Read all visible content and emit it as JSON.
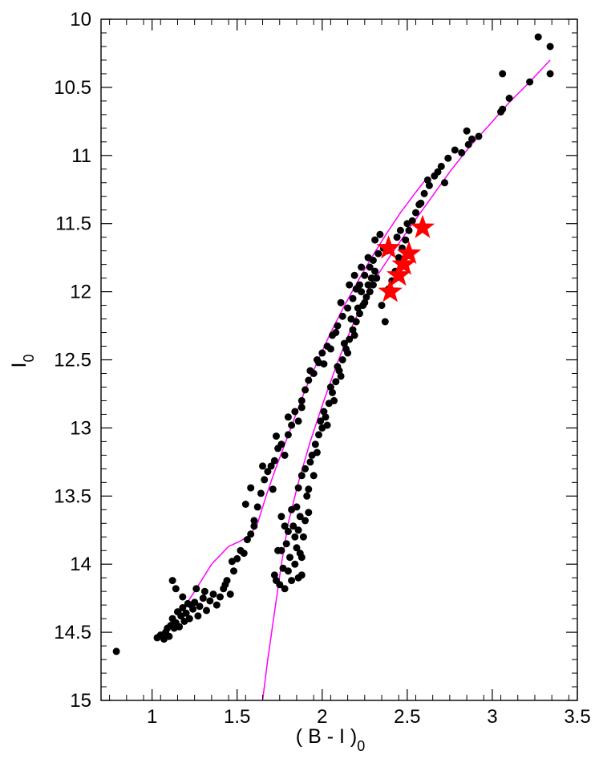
{
  "chart_data": {
    "type": "scatter",
    "title": "",
    "xlabel": "( B - I )",
    "xlabel_sub": "0",
    "ylabel": "I",
    "ylabel_sub": "0",
    "xlim": [
      0.7,
      3.5
    ],
    "ylim": [
      15,
      10
    ],
    "y_inverted": true,
    "grid": false,
    "x_ticks": [
      "1",
      "1.5",
      "2",
      "2.5",
      "3",
      "3.5"
    ],
    "y_ticks": [
      "10",
      "10.5",
      "11",
      "11.5",
      "12",
      "12.5",
      "13",
      "13.5",
      "14",
      "14.5",
      "15"
    ],
    "colors": {
      "points": "#000000",
      "stars": "#ff0000",
      "isochrones": "#ff00ff"
    },
    "series": [
      {
        "kind": "points",
        "marker": "filled-circle",
        "points": [
          [
            0.79,
            14.64
          ],
          [
            1.03,
            14.54
          ],
          [
            1.05,
            14.52
          ],
          [
            1.07,
            14.55
          ],
          [
            1.08,
            14.5
          ],
          [
            1.09,
            14.47
          ],
          [
            1.1,
            14.53
          ],
          [
            1.11,
            14.45
          ],
          [
            1.12,
            14.4
          ],
          [
            1.13,
            14.47
          ],
          [
            1.14,
            14.43
          ],
          [
            1.15,
            14.35
          ],
          [
            1.16,
            14.46
          ],
          [
            1.17,
            14.38
          ],
          [
            1.18,
            14.32
          ],
          [
            1.19,
            14.42
          ],
          [
            1.2,
            14.36
          ],
          [
            1.21,
            14.29
          ],
          [
            1.22,
            14.4
          ],
          [
            1.24,
            14.33
          ],
          [
            1.25,
            14.28
          ],
          [
            1.27,
            14.38
          ],
          [
            1.28,
            14.31
          ],
          [
            1.3,
            14.25
          ],
          [
            1.32,
            14.34
          ],
          [
            1.34,
            14.27
          ],
          [
            1.36,
            14.22
          ],
          [
            1.38,
            14.3
          ],
          [
            1.4,
            14.24
          ],
          [
            1.42,
            14.18
          ],
          [
            1.44,
            14.12
          ],
          [
            1.46,
            14.22
          ],
          [
            1.48,
            14.05
          ],
          [
            1.5,
            13.96
          ],
          [
            1.52,
            13.9
          ],
          [
            1.54,
            13.92
          ],
          [
            1.56,
            13.82
          ],
          [
            1.58,
            13.78
          ],
          [
            1.6,
            13.72
          ],
          [
            1.62,
            13.58
          ],
          [
            1.64,
            13.48
          ],
          [
            1.66,
            13.38
          ],
          [
            1.68,
            13.32
          ],
          [
            1.7,
            13.28
          ],
          [
            1.72,
            13.24
          ],
          [
            1.74,
            13.15
          ],
          [
            1.76,
            13.12
          ],
          [
            1.78,
            13.2
          ],
          [
            1.8,
            13.05
          ],
          [
            1.82,
            12.98
          ],
          [
            1.84,
            12.88
          ],
          [
            1.86,
            12.95
          ],
          [
            1.88,
            12.8
          ],
          [
            1.9,
            12.72
          ],
          [
            1.92,
            12.65
          ],
          [
            1.95,
            12.6
          ],
          [
            1.98,
            12.52
          ],
          [
            2.0,
            12.45
          ],
          [
            2.03,
            12.4
          ],
          [
            2.06,
            12.32
          ],
          [
            2.09,
            12.25
          ],
          [
            2.12,
            12.18
          ],
          [
            2.15,
            12.12
          ],
          [
            2.18,
            12.05
          ],
          [
            2.2,
            11.98
          ],
          [
            2.22,
            11.95
          ],
          [
            2.25,
            11.88
          ],
          [
            2.28,
            11.82
          ],
          [
            2.3,
            11.77
          ],
          [
            2.33,
            11.72
          ],
          [
            2.36,
            11.68
          ],
          [
            1.12,
            14.12
          ],
          [
            1.14,
            14.18
          ],
          [
            1.26,
            14.18
          ],
          [
            1.31,
            14.2
          ],
          [
            1.18,
            14.24
          ],
          [
            1.23,
            14.3
          ],
          [
            1.43,
            14.15
          ],
          [
            1.47,
            13.98
          ],
          [
            1.55,
            13.56
          ],
          [
            1.58,
            13.44
          ],
          [
            1.6,
            13.68
          ],
          [
            1.65,
            13.28
          ],
          [
            1.71,
            13.45
          ],
          [
            1.73,
            13.06
          ],
          [
            1.8,
            12.92
          ],
          [
            1.88,
            12.85
          ],
          [
            1.93,
            12.58
          ],
          [
            1.97,
            12.5
          ],
          [
            2.01,
            12.53
          ],
          [
            2.05,
            12.42
          ],
          [
            2.08,
            12.3
          ],
          [
            2.11,
            12.08
          ],
          [
            2.16,
            11.95
          ],
          [
            2.19,
            11.88
          ],
          [
            2.23,
            11.82
          ],
          [
            2.27,
            11.75
          ],
          [
            2.31,
            11.62
          ],
          [
            2.34,
            11.58
          ],
          [
            2.38,
            11.7
          ],
          [
            1.72,
            14.08
          ],
          [
            1.73,
            14.12
          ],
          [
            1.75,
            14.15
          ],
          [
            1.76,
            13.9
          ],
          [
            1.77,
            14.03
          ],
          [
            1.78,
            14.18
          ],
          [
            1.79,
            13.85
          ],
          [
            1.8,
            14.05
          ],
          [
            1.81,
            13.95
          ],
          [
            1.82,
            14.12
          ],
          [
            1.83,
            13.72
          ],
          [
            1.84,
            14.0
          ],
          [
            1.85,
            13.88
          ],
          [
            1.86,
            14.1
          ],
          [
            1.87,
            13.92
          ],
          [
            1.88,
            14.08
          ],
          [
            1.76,
            13.65
          ],
          [
            1.78,
            13.72
          ],
          [
            1.82,
            13.6
          ],
          [
            1.85,
            13.58
          ],
          [
            1.87,
            13.65
          ],
          [
            1.89,
            13.8
          ],
          [
            1.91,
            13.5
          ],
          [
            1.92,
            13.62
          ],
          [
            1.8,
            13.76
          ],
          [
            1.84,
            13.8
          ],
          [
            1.86,
            13.75
          ],
          [
            1.88,
            13.95
          ],
          [
            1.9,
            13.68
          ],
          [
            1.74,
            13.9
          ],
          [
            1.86,
            13.44
          ],
          [
            1.88,
            13.35
          ],
          [
            1.9,
            13.3
          ],
          [
            1.92,
            13.45
          ],
          [
            1.94,
            13.2
          ],
          [
            1.96,
            13.12
          ],
          [
            1.98,
            13.05
          ],
          [
            2.0,
            13.0
          ],
          [
            2.02,
            12.92
          ],
          [
            2.04,
            12.82
          ],
          [
            2.06,
            12.74
          ],
          [
            2.08,
            12.66
          ],
          [
            2.1,
            12.58
          ],
          [
            2.12,
            12.5
          ],
          [
            2.14,
            12.42
          ],
          [
            2.16,
            12.35
          ],
          [
            2.18,
            12.28
          ],
          [
            2.2,
            12.22
          ],
          [
            2.22,
            12.16
          ],
          [
            2.24,
            12.1
          ],
          [
            2.26,
            12.04
          ],
          [
            2.28,
            12.0
          ],
          [
            2.3,
            11.95
          ],
          [
            2.32,
            11.9
          ],
          [
            1.93,
            13.25
          ],
          [
            1.95,
            13.35
          ],
          [
            1.97,
            13.18
          ],
          [
            1.99,
            12.95
          ],
          [
            2.01,
            12.88
          ],
          [
            2.03,
            12.98
          ],
          [
            2.05,
            12.7
          ],
          [
            2.07,
            12.8
          ],
          [
            2.09,
            12.55
          ],
          [
            2.11,
            12.62
          ],
          [
            2.13,
            12.38
          ],
          [
            2.15,
            12.45
          ],
          [
            2.17,
            12.2
          ],
          [
            2.19,
            12.32
          ],
          [
            2.21,
            12.12
          ],
          [
            2.23,
            12.0
          ],
          [
            2.25,
            12.08
          ],
          [
            2.27,
            11.95
          ],
          [
            2.29,
            11.9
          ],
          [
            2.31,
            11.85
          ],
          [
            2.35,
            12.1
          ],
          [
            2.37,
            12.22
          ],
          [
            2.39,
            11.98
          ],
          [
            2.41,
            11.92
          ],
          [
            2.43,
            11.85
          ],
          [
            2.45,
            11.75
          ],
          [
            2.47,
            11.68
          ],
          [
            2.49,
            11.62
          ],
          [
            2.51,
            11.55
          ],
          [
            2.53,
            11.48
          ],
          [
            2.55,
            11.42
          ],
          [
            2.57,
            11.36
          ],
          [
            2.6,
            11.28
          ],
          [
            2.63,
            11.22
          ],
          [
            2.66,
            11.15
          ],
          [
            2.7,
            11.08
          ],
          [
            2.74,
            11.02
          ],
          [
            2.78,
            10.96
          ],
          [
            2.82,
            10.98
          ],
          [
            2.85,
            10.82
          ],
          [
            2.86,
            10.92
          ],
          [
            2.88,
            10.88
          ],
          [
            2.92,
            10.86
          ],
          [
            3.05,
            10.68
          ],
          [
            3.06,
            10.66
          ],
          [
            3.1,
            10.58
          ],
          [
            3.22,
            10.46
          ],
          [
            3.06,
            10.4
          ],
          [
            3.27,
            10.13
          ],
          [
            3.34,
            10.2
          ],
          [
            3.34,
            10.4
          ],
          [
            2.5,
            11.5
          ],
          [
            2.58,
            11.35
          ],
          [
            2.62,
            11.18
          ],
          [
            2.68,
            11.12
          ],
          [
            2.72,
            11.2
          ],
          [
            2.46,
            11.55
          ],
          [
            2.44,
            11.6
          ]
        ]
      },
      {
        "kind": "stars",
        "marker": "filled-star",
        "points": [
          [
            2.39,
            11.68
          ],
          [
            2.59,
            11.53
          ],
          [
            2.51,
            11.72
          ],
          [
            2.45,
            11.88
          ],
          [
            2.4,
            12.0
          ],
          [
            2.48,
            11.8
          ]
        ]
      },
      {
        "kind": "line",
        "name": "isochrone-1",
        "points": [
          [
            1.16,
            14.37
          ],
          [
            1.25,
            14.2
          ],
          [
            1.35,
            14.0
          ],
          [
            1.45,
            13.87
          ],
          [
            1.52,
            13.83
          ],
          [
            1.58,
            13.78
          ],
          [
            1.62,
            13.7
          ],
          [
            1.67,
            13.5
          ],
          [
            1.72,
            13.32
          ],
          [
            1.78,
            13.12
          ],
          [
            1.84,
            12.92
          ],
          [
            1.9,
            12.72
          ],
          [
            1.97,
            12.52
          ],
          [
            2.05,
            12.3
          ],
          [
            2.14,
            12.08
          ],
          [
            2.22,
            11.9
          ],
          [
            2.3,
            11.73
          ],
          [
            2.38,
            11.57
          ],
          [
            2.46,
            11.42
          ],
          [
            2.55,
            11.27
          ],
          [
            2.6,
            11.19
          ]
        ]
      },
      {
        "kind": "line",
        "name": "isochrone-2",
        "points": [
          [
            1.65,
            15.0
          ],
          [
            1.68,
            14.7
          ],
          [
            1.72,
            14.35
          ],
          [
            1.76,
            14.0
          ],
          [
            1.8,
            13.7
          ],
          [
            1.86,
            13.4
          ],
          [
            1.93,
            13.1
          ],
          [
            2.01,
            12.8
          ],
          [
            2.09,
            12.52
          ],
          [
            2.17,
            12.27
          ],
          [
            2.25,
            12.05
          ],
          [
            2.33,
            11.87
          ],
          [
            2.42,
            11.7
          ],
          [
            2.52,
            11.52
          ],
          [
            2.63,
            11.33
          ],
          [
            2.75,
            11.12
          ],
          [
            2.87,
            10.93
          ],
          [
            2.98,
            10.78
          ],
          [
            3.1,
            10.61
          ],
          [
            3.22,
            10.46
          ],
          [
            3.34,
            10.3
          ]
        ]
      }
    ]
  }
}
